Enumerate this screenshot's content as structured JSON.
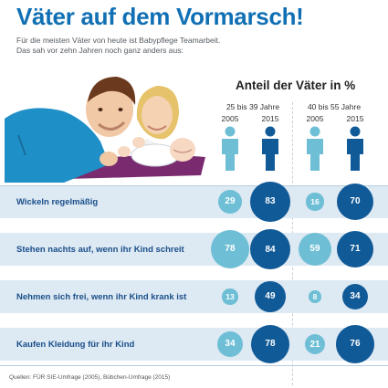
{
  "header": {
    "title": "Väter auf dem Vormarsch!",
    "subtitle_line1": "Für die meisten Väter von heute ist Babypflege Teamarbeit.",
    "subtitle_line2": "Das sah vor zehn Jahren noch ganz anders aus:"
  },
  "footer": {
    "source": "Quellen: FÜR SIE-Umfrage (2005), Bübchen-Umfrage (2015)"
  },
  "colors": {
    "light_2005": "#6ebfd6",
    "dark_2015": "#115a98",
    "band": "#dde9f3",
    "title": "#1170b4"
  },
  "icons": [
    "father-baby-illustration",
    "person-icon"
  ],
  "chart_data": {
    "type": "bubble-table",
    "title": "Anteil der Väter in %",
    "groups": [
      {
        "label": "25 bis 39 Jahre",
        "years": [
          "2005",
          "2015"
        ]
      },
      {
        "label": "40 bis 55 Jahre",
        "years": [
          "2005",
          "2015"
        ]
      }
    ],
    "rows": [
      {
        "label": "Wickeln regelmäßig",
        "values": [
          29,
          83,
          16,
          70
        ]
      },
      {
        "label": "Stehen nachts auf, wenn ihr Kind schreit",
        "values": [
          78,
          84,
          59,
          71
        ]
      },
      {
        "label": "Nehmen sich frei, wenn ihr Kind krank ist",
        "values": [
          13,
          49,
          8,
          34
        ]
      },
      {
        "label": "Kaufen Kleidung für ihr Kind",
        "values": [
          34,
          78,
          21,
          76
        ]
      }
    ],
    "series": [
      {
        "name": "2005",
        "color": "#6ebfd6"
      },
      {
        "name": "2015",
        "color": "#115a98"
      }
    ]
  }
}
